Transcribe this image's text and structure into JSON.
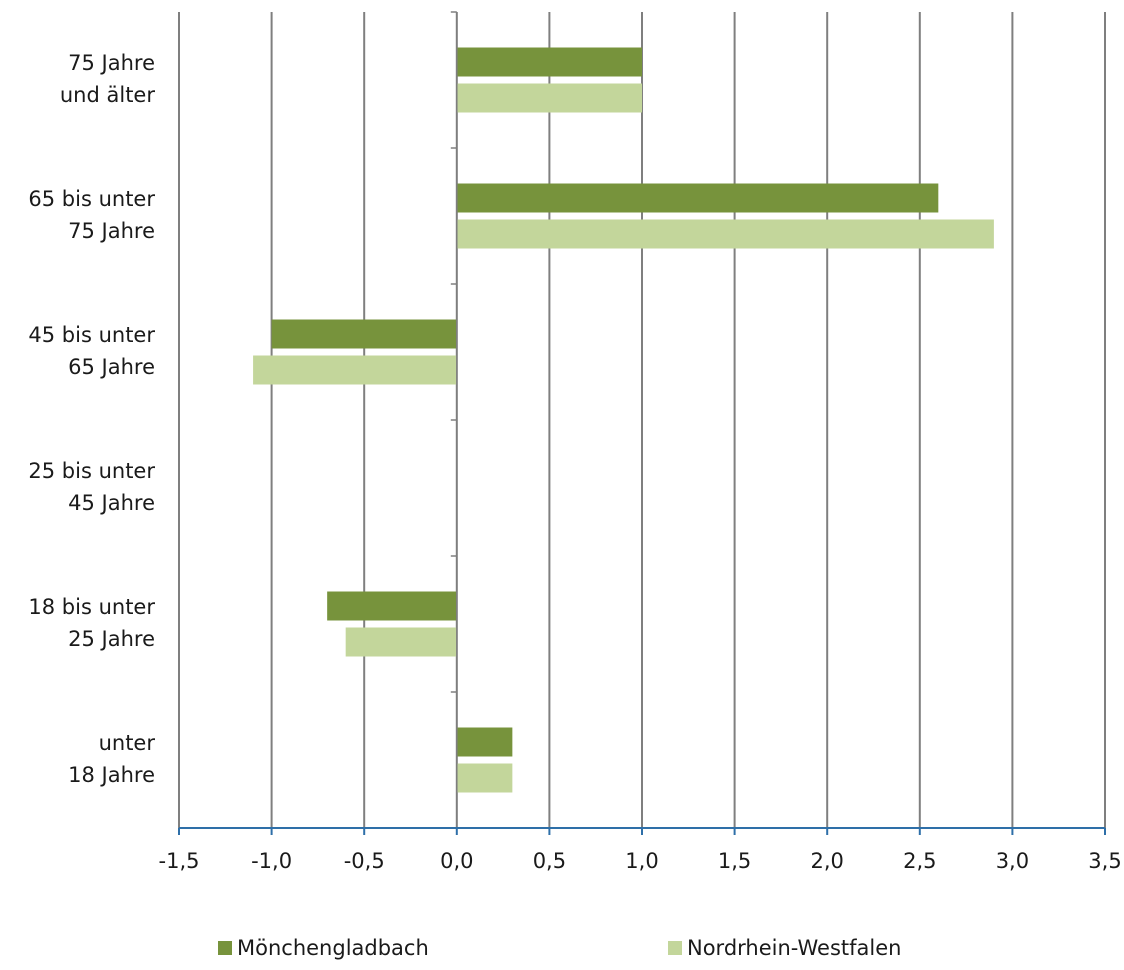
{
  "chart_data": {
    "type": "bar",
    "orientation": "horizontal",
    "categories": [
      [
        "75 Jahre",
        "und älter"
      ],
      [
        "65 bis unter",
        "75 Jahre"
      ],
      [
        "45 bis unter",
        "65 Jahre"
      ],
      [
        "25 bis unter",
        "45 Jahre"
      ],
      [
        "18 bis unter",
        "25 Jahre"
      ],
      [
        "unter",
        "18 Jahre"
      ]
    ],
    "series": [
      {
        "name": "Mönchengladbach",
        "color": "#77933c",
        "values": [
          1.0,
          2.6,
          -1.0,
          0.0,
          -0.7,
          0.3
        ]
      },
      {
        "name": "Nordrhein-Westfalen",
        "color": "#c3d69b",
        "values": [
          1.0,
          2.9,
          -1.1,
          0.0,
          -0.6,
          0.3
        ]
      }
    ],
    "xlim": [
      -1.5,
      3.5
    ],
    "xticks": [
      "-1,5",
      "-1,0",
      "-0,5",
      "0,0",
      "0,5",
      "1,0",
      "1,5",
      "2,0",
      "2,5",
      "3,0",
      "3,5"
    ],
    "grid": true,
    "gridline_color": "#7f7f7f",
    "axis_color": "#2e6fa8",
    "legend_position": "bottom"
  }
}
